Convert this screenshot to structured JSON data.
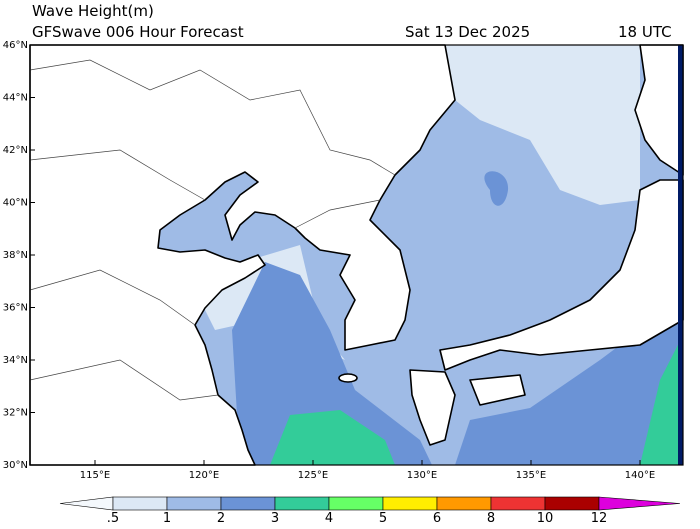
{
  "header": {
    "title": "Wave Height(m)",
    "subtitle": "GFSwave 006 Hour Forecast",
    "date": "Sat 13 Dec 2025",
    "time": "18 UTC"
  },
  "map": {
    "lat_labels": [
      "46°N",
      "44°N",
      "42°N",
      "40°N",
      "38°N",
      "36°N",
      "34°N",
      "32°N",
      "30°N"
    ],
    "lon_labels": [
      "115°E",
      "120°E",
      "125°E",
      "130°E",
      "135°E",
      "140°E"
    ]
  },
  "colorbar": {
    "labels": [
      ".5",
      "1",
      "2",
      "3",
      "4",
      "5",
      "6",
      "8",
      "10",
      "12"
    ],
    "colors": [
      "#f4f8fc",
      "#dce8f5",
      "#9fbbe6",
      "#6b93d6",
      "#33cc99",
      "#66ff66",
      "#ffee00",
      "#ff9900",
      "#ee3333",
      "#aa0000",
      "#dd00dd"
    ]
  }
}
